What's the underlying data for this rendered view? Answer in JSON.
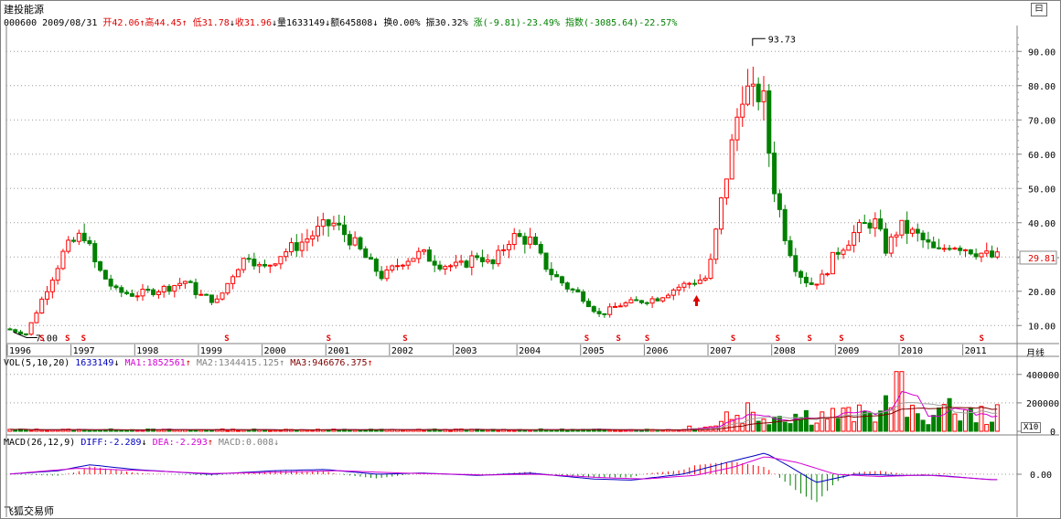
{
  "header": {
    "stock_name": "建投能源",
    "code": "000600",
    "date": "2009/08/31",
    "open_label": "开",
    "open": "42.06",
    "high_label": "高",
    "high": "44.45",
    "low_label": "低",
    "low": "31.78",
    "close_label": "收",
    "close": "31.96",
    "volume_label": "量",
    "volume": "1633149",
    "amount_label": "额",
    "amount": "645808",
    "turnover_label": "换",
    "turnover": "0.00%",
    "amplitude_label": "振",
    "amplitude": "30.32%",
    "change_label": "涨",
    "change": "(-9.81)-23.49%",
    "index_label": "指数",
    "index_change": "(-3085.64)-22.57%",
    "arrow_up": "↑",
    "arrow_down": "↓"
  },
  "volume_panel": {
    "title": "VOL(5,10,20)",
    "vol_value": "1633149",
    "ma1_label": "MA1:",
    "ma1_value": "1852561",
    "ma2_label": "MA2:",
    "ma2_value": "1344415.125",
    "ma3_label": "MA3:",
    "ma3_value": "946676.375",
    "y_ticks": [
      "400000",
      "200000",
      "0"
    ],
    "scale_badge": "X10"
  },
  "macd_panel": {
    "title": "MACD(26,12,9)",
    "diff_label": "DIFF:",
    "diff_value": "-2.289",
    "dea_label": "DEA:",
    "dea_value": "-2.293",
    "macd_label": "MACD:",
    "macd_value": "0.008",
    "y_tick": "0.00"
  },
  "price_panel": {
    "y_ticks": [
      "90.00",
      "80.00",
      "70.00",
      "60.00",
      "50.00",
      "40.00",
      "30.00",
      "20.00",
      "10.00"
    ],
    "current_price": "29.81",
    "max_label": "93.73",
    "min_label": "7.00"
  },
  "period_label": "月线",
  "footer_text": "飞狐交易师",
  "top_button": "曰",
  "colors": {
    "up": "#ff0000",
    "down": "#008000",
    "ma1": "#d400d4",
    "ma2": "#a0a0a0",
    "ma3": "#800000",
    "diff": "#0000c0",
    "dea": "#d400d4",
    "current_price_bg": "#ffffff",
    "current_price_fg": "#e00000"
  },
  "chart_data": {
    "type": "candlestick",
    "period": "monthly",
    "ylim": [
      5,
      97
    ],
    "x_axis_years": [
      "1996",
      "1997",
      "1998",
      "1999",
      "2000",
      "2001",
      "2002",
      "2003",
      "2004",
      "2005",
      "2006",
      "2007",
      "2008",
      "2009",
      "2010",
      "2011"
    ],
    "markers_year_fraction": [
      1996.55,
      1996.95,
      1997.2,
      1999.45,
      2001.05,
      2002.25,
      2005.1,
      2005.6,
      2006.05,
      2007.4,
      2008.1,
      2008.6,
      2009.1,
      2010.05,
      2011.3
    ],
    "price_curve": [
      [
        1996.0,
        9
      ],
      [
        1996.3,
        7.5
      ],
      [
        1996.6,
        20
      ],
      [
        1996.9,
        32
      ],
      [
        1997.2,
        37
      ],
      [
        1997.4,
        27
      ],
      [
        1997.7,
        20
      ],
      [
        1998.0,
        19
      ],
      [
        1998.5,
        21
      ],
      [
        1998.8,
        23
      ],
      [
        1999.0,
        19
      ],
      [
        1999.3,
        17
      ],
      [
        1999.6,
        27
      ],
      [
        1999.8,
        31
      ],
      [
        2000.0,
        26
      ],
      [
        2000.3,
        31
      ],
      [
        2000.6,
        34
      ],
      [
        2000.9,
        38
      ],
      [
        2001.1,
        40
      ],
      [
        2001.4,
        35
      ],
      [
        2001.7,
        28
      ],
      [
        2001.9,
        24
      ],
      [
        2002.2,
        29
      ],
      [
        2002.5,
        31
      ],
      [
        2002.8,
        28
      ],
      [
        2003.1,
        27
      ],
      [
        2003.4,
        31
      ],
      [
        2003.6,
        27
      ],
      [
        2003.9,
        36
      ],
      [
        2004.2,
        35
      ],
      [
        2004.5,
        26
      ],
      [
        2004.8,
        21
      ],
      [
        2005.0,
        19
      ],
      [
        2005.3,
        13
      ],
      [
        2005.6,
        16
      ],
      [
        2005.9,
        17
      ],
      [
        2006.2,
        18
      ],
      [
        2006.5,
        21
      ],
      [
        2006.8,
        23
      ],
      [
        2007.0,
        24
      ],
      [
        2007.2,
        45
      ],
      [
        2007.4,
        65
      ],
      [
        2007.55,
        80
      ],
      [
        2007.7,
        76
      ],
      [
        2007.85,
        79
      ],
      [
        2008.0,
        54
      ],
      [
        2008.2,
        37
      ],
      [
        2008.4,
        26
      ],
      [
        2008.6,
        22
      ],
      [
        2008.8,
        24
      ],
      [
        2009.0,
        31
      ],
      [
        2009.3,
        37
      ],
      [
        2009.6,
        41
      ],
      [
        2009.8,
        32
      ],
      [
        2010.0,
        39
      ],
      [
        2010.3,
        36
      ],
      [
        2010.6,
        31
      ],
      [
        2010.8,
        34
      ],
      [
        2011.0,
        33
      ],
      [
        2011.3,
        31
      ],
      [
        2011.45,
        30
      ]
    ],
    "high_marker": {
      "x": 2007.7,
      "y": 93.73
    },
    "low_marker": {
      "x": 1996.3,
      "y": 7.0
    },
    "last_price": 29.81,
    "volume_ylim": [
      0,
      450000
    ],
    "volume_peaks": [
      [
        2010.0,
        420000
      ],
      [
        2007.6,
        200000
      ],
      [
        2009.8,
        250000
      ],
      [
        2010.8,
        230000
      ]
    ],
    "macd_curves": {
      "diff": [
        [
          1996.0,
          0
        ],
        [
          1996.8,
          1.5
        ],
        [
          1997.3,
          4
        ],
        [
          1998.0,
          2
        ],
        [
          1999.2,
          0
        ],
        [
          2000.2,
          1.5
        ],
        [
          2001.0,
          2
        ],
        [
          2001.8,
          0
        ],
        [
          2002.5,
          0.5
        ],
        [
          2003.4,
          -0.5
        ],
        [
          2004.2,
          0.5
        ],
        [
          2005.2,
          -2
        ],
        [
          2005.8,
          -2.5
        ],
        [
          2006.6,
          0
        ],
        [
          2007.3,
          5
        ],
        [
          2007.9,
          9
        ],
        [
          2008.3,
          3
        ],
        [
          2008.7,
          -3.5
        ],
        [
          2009.3,
          0
        ],
        [
          2010.0,
          -0.5
        ],
        [
          2010.6,
          -0.5
        ],
        [
          2011.45,
          -2.3
        ]
      ],
      "dea": [
        [
          1996.0,
          0
        ],
        [
          1997.1,
          2.5
        ],
        [
          1998.2,
          1.5
        ],
        [
          1999.2,
          0.3
        ],
        [
          2000.5,
          1
        ],
        [
          2001.2,
          1.5
        ],
        [
          2002.2,
          0.5
        ],
        [
          2003.5,
          -0.3
        ],
        [
          2004.3,
          0
        ],
        [
          2005.4,
          -1.5
        ],
        [
          2006.0,
          -2
        ],
        [
          2006.8,
          -0.5
        ],
        [
          2007.4,
          3
        ],
        [
          2007.9,
          7.5
        ],
        [
          2008.4,
          5
        ],
        [
          2009.0,
          0
        ],
        [
          2009.7,
          -1
        ],
        [
          2010.4,
          -0.3
        ],
        [
          2011.45,
          -2.3
        ]
      ]
    },
    "macd_ylim": [
      -12,
      12
    ]
  }
}
